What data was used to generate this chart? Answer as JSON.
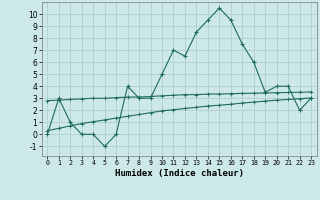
{
  "xlabel": "Humidex (Indice chaleur)",
  "bg_color": "#cde8e8",
  "grid_color": "#b0d0cc",
  "line_color": "#1e6b5e",
  "x_values": [
    0,
    1,
    2,
    3,
    4,
    5,
    6,
    7,
    8,
    9,
    10,
    11,
    12,
    13,
    14,
    15,
    16,
    17,
    18,
    19,
    20,
    21,
    22,
    23
  ],
  "y_main": [
    0,
    3,
    1,
    0,
    0,
    -1,
    0,
    4,
    3,
    3,
    5,
    7,
    6.5,
    8.5,
    9.5,
    10.5,
    9.5,
    7.5,
    6,
    3.5,
    4,
    4,
    2,
    3
  ],
  "y_line1": [
    2.8,
    2.85,
    2.9,
    2.95,
    3.0,
    3.0,
    3.05,
    3.1,
    3.1,
    3.15,
    3.2,
    3.25,
    3.3,
    3.3,
    3.35,
    3.35,
    3.38,
    3.4,
    3.42,
    3.44,
    3.46,
    3.48,
    3.5,
    3.52
  ],
  "y_line2": [
    0.3,
    0.5,
    0.7,
    0.9,
    1.05,
    1.2,
    1.35,
    1.5,
    1.65,
    1.8,
    1.95,
    2.05,
    2.15,
    2.25,
    2.35,
    2.42,
    2.5,
    2.6,
    2.68,
    2.76,
    2.84,
    2.9,
    2.96,
    3.02
  ],
  "ylim": [
    -1.8,
    11
  ],
  "xlim": [
    -0.5,
    23.5
  ],
  "yticks": [
    -1,
    0,
    1,
    2,
    3,
    4,
    5,
    6,
    7,
    8,
    9,
    10
  ],
  "xticks": [
    0,
    1,
    2,
    3,
    4,
    5,
    6,
    7,
    8,
    9,
    10,
    11,
    12,
    13,
    14,
    15,
    16,
    17,
    18,
    19,
    20,
    21,
    22,
    23
  ]
}
